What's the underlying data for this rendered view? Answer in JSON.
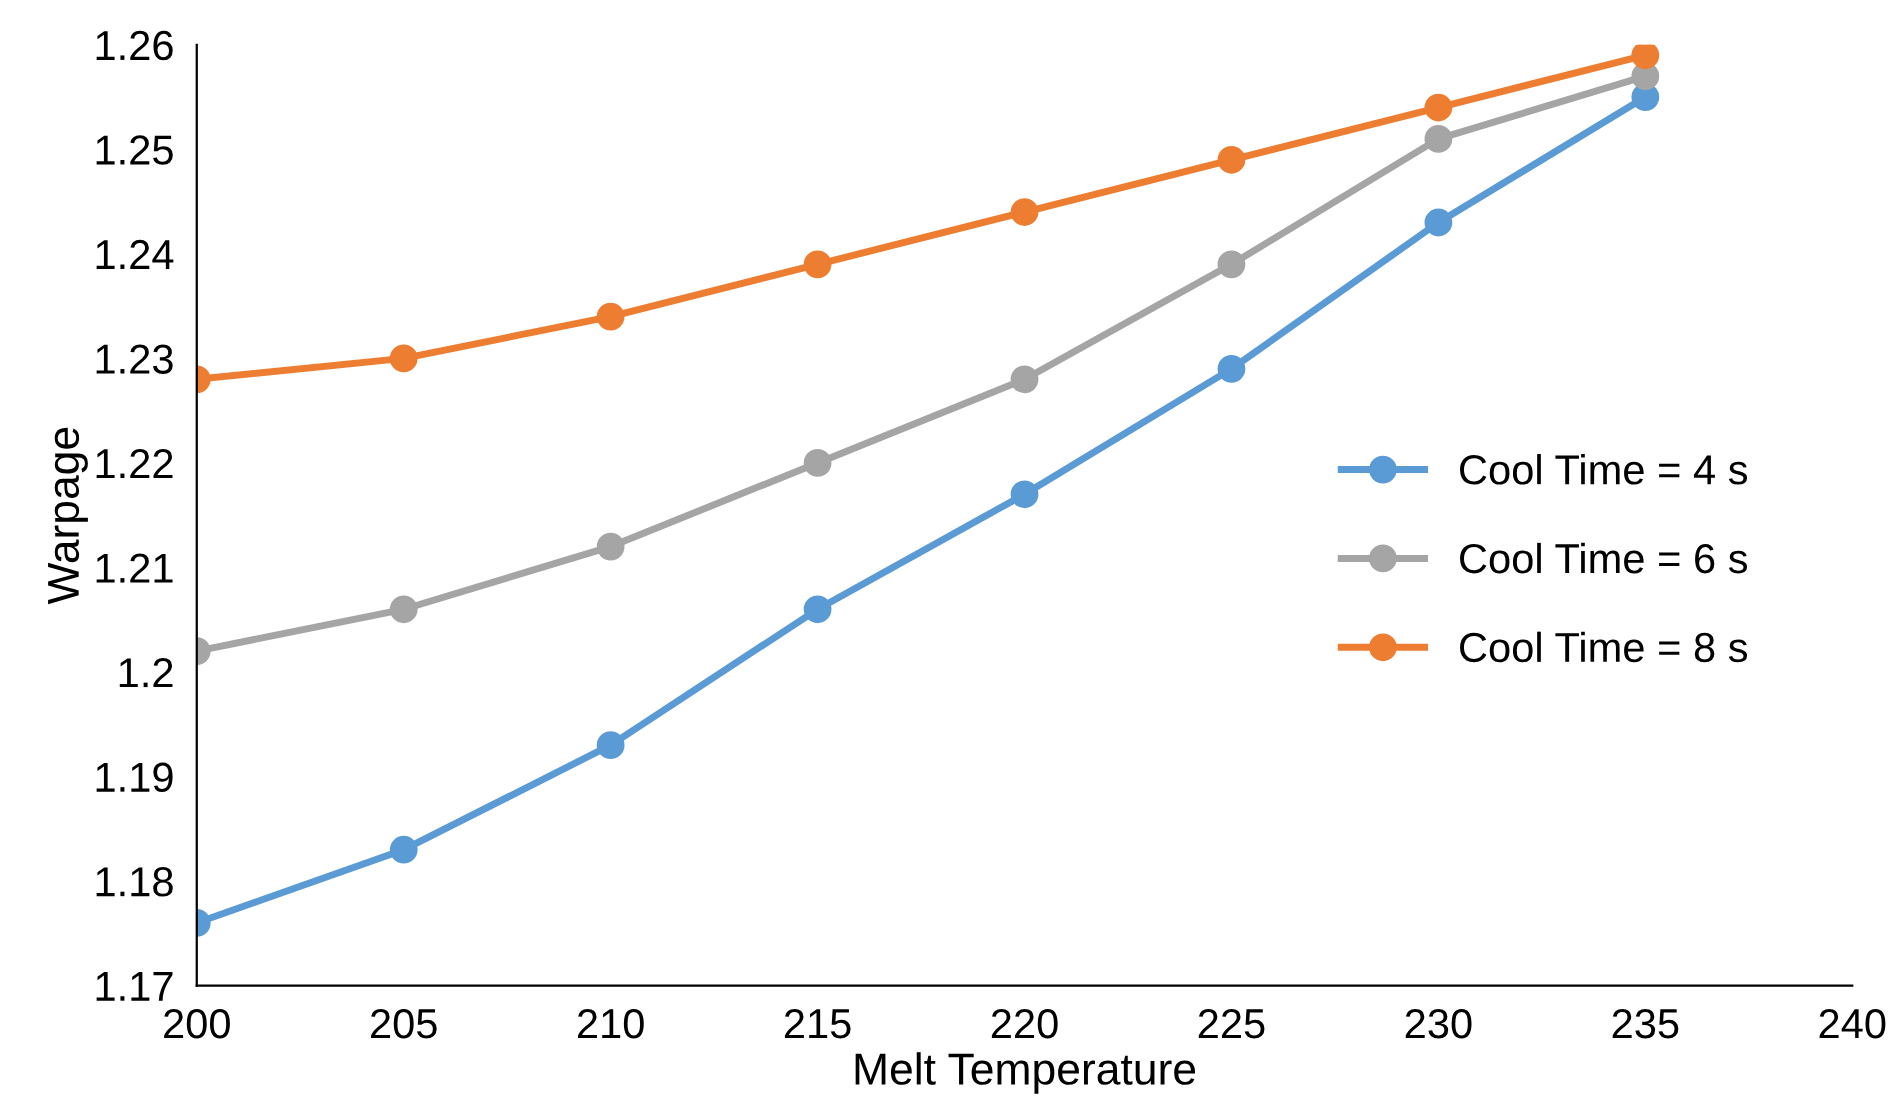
{
  "chart_data": {
    "type": "line",
    "xlabel": "Melt Temperature",
    "ylabel": "Warpage",
    "x": [
      200,
      205,
      210,
      215,
      220,
      225,
      230,
      235
    ],
    "series": [
      {
        "name": "Cool Time = 4 s",
        "color": "#5b9bd5",
        "values": [
          1.176,
          1.183,
          1.193,
          1.206,
          1.217,
          1.229,
          1.243,
          1.255
        ]
      },
      {
        "name": "Cool Time = 6 s",
        "color": "#a5a5a5",
        "values": [
          1.202,
          1.206,
          1.212,
          1.22,
          1.228,
          1.239,
          1.251,
          1.257
        ]
      },
      {
        "name": "Cool Time = 8 s",
        "color": "#ed7d31",
        "values": [
          1.228,
          1.23,
          1.234,
          1.239,
          1.244,
          1.249,
          1.254,
          1.259
        ]
      }
    ],
    "xlim": [
      200,
      240
    ],
    "xticks": [
      200,
      205,
      210,
      215,
      220,
      225,
      230,
      235,
      240
    ],
    "ylim": [
      1.17,
      1.26
    ],
    "yticks": [
      1.17,
      1.18,
      1.19,
      1.2,
      1.21,
      1.22,
      1.23,
      1.24,
      1.25,
      1.26
    ],
    "grid": false,
    "legend": "center right",
    "marker": "circle",
    "line_style": "solid"
  }
}
